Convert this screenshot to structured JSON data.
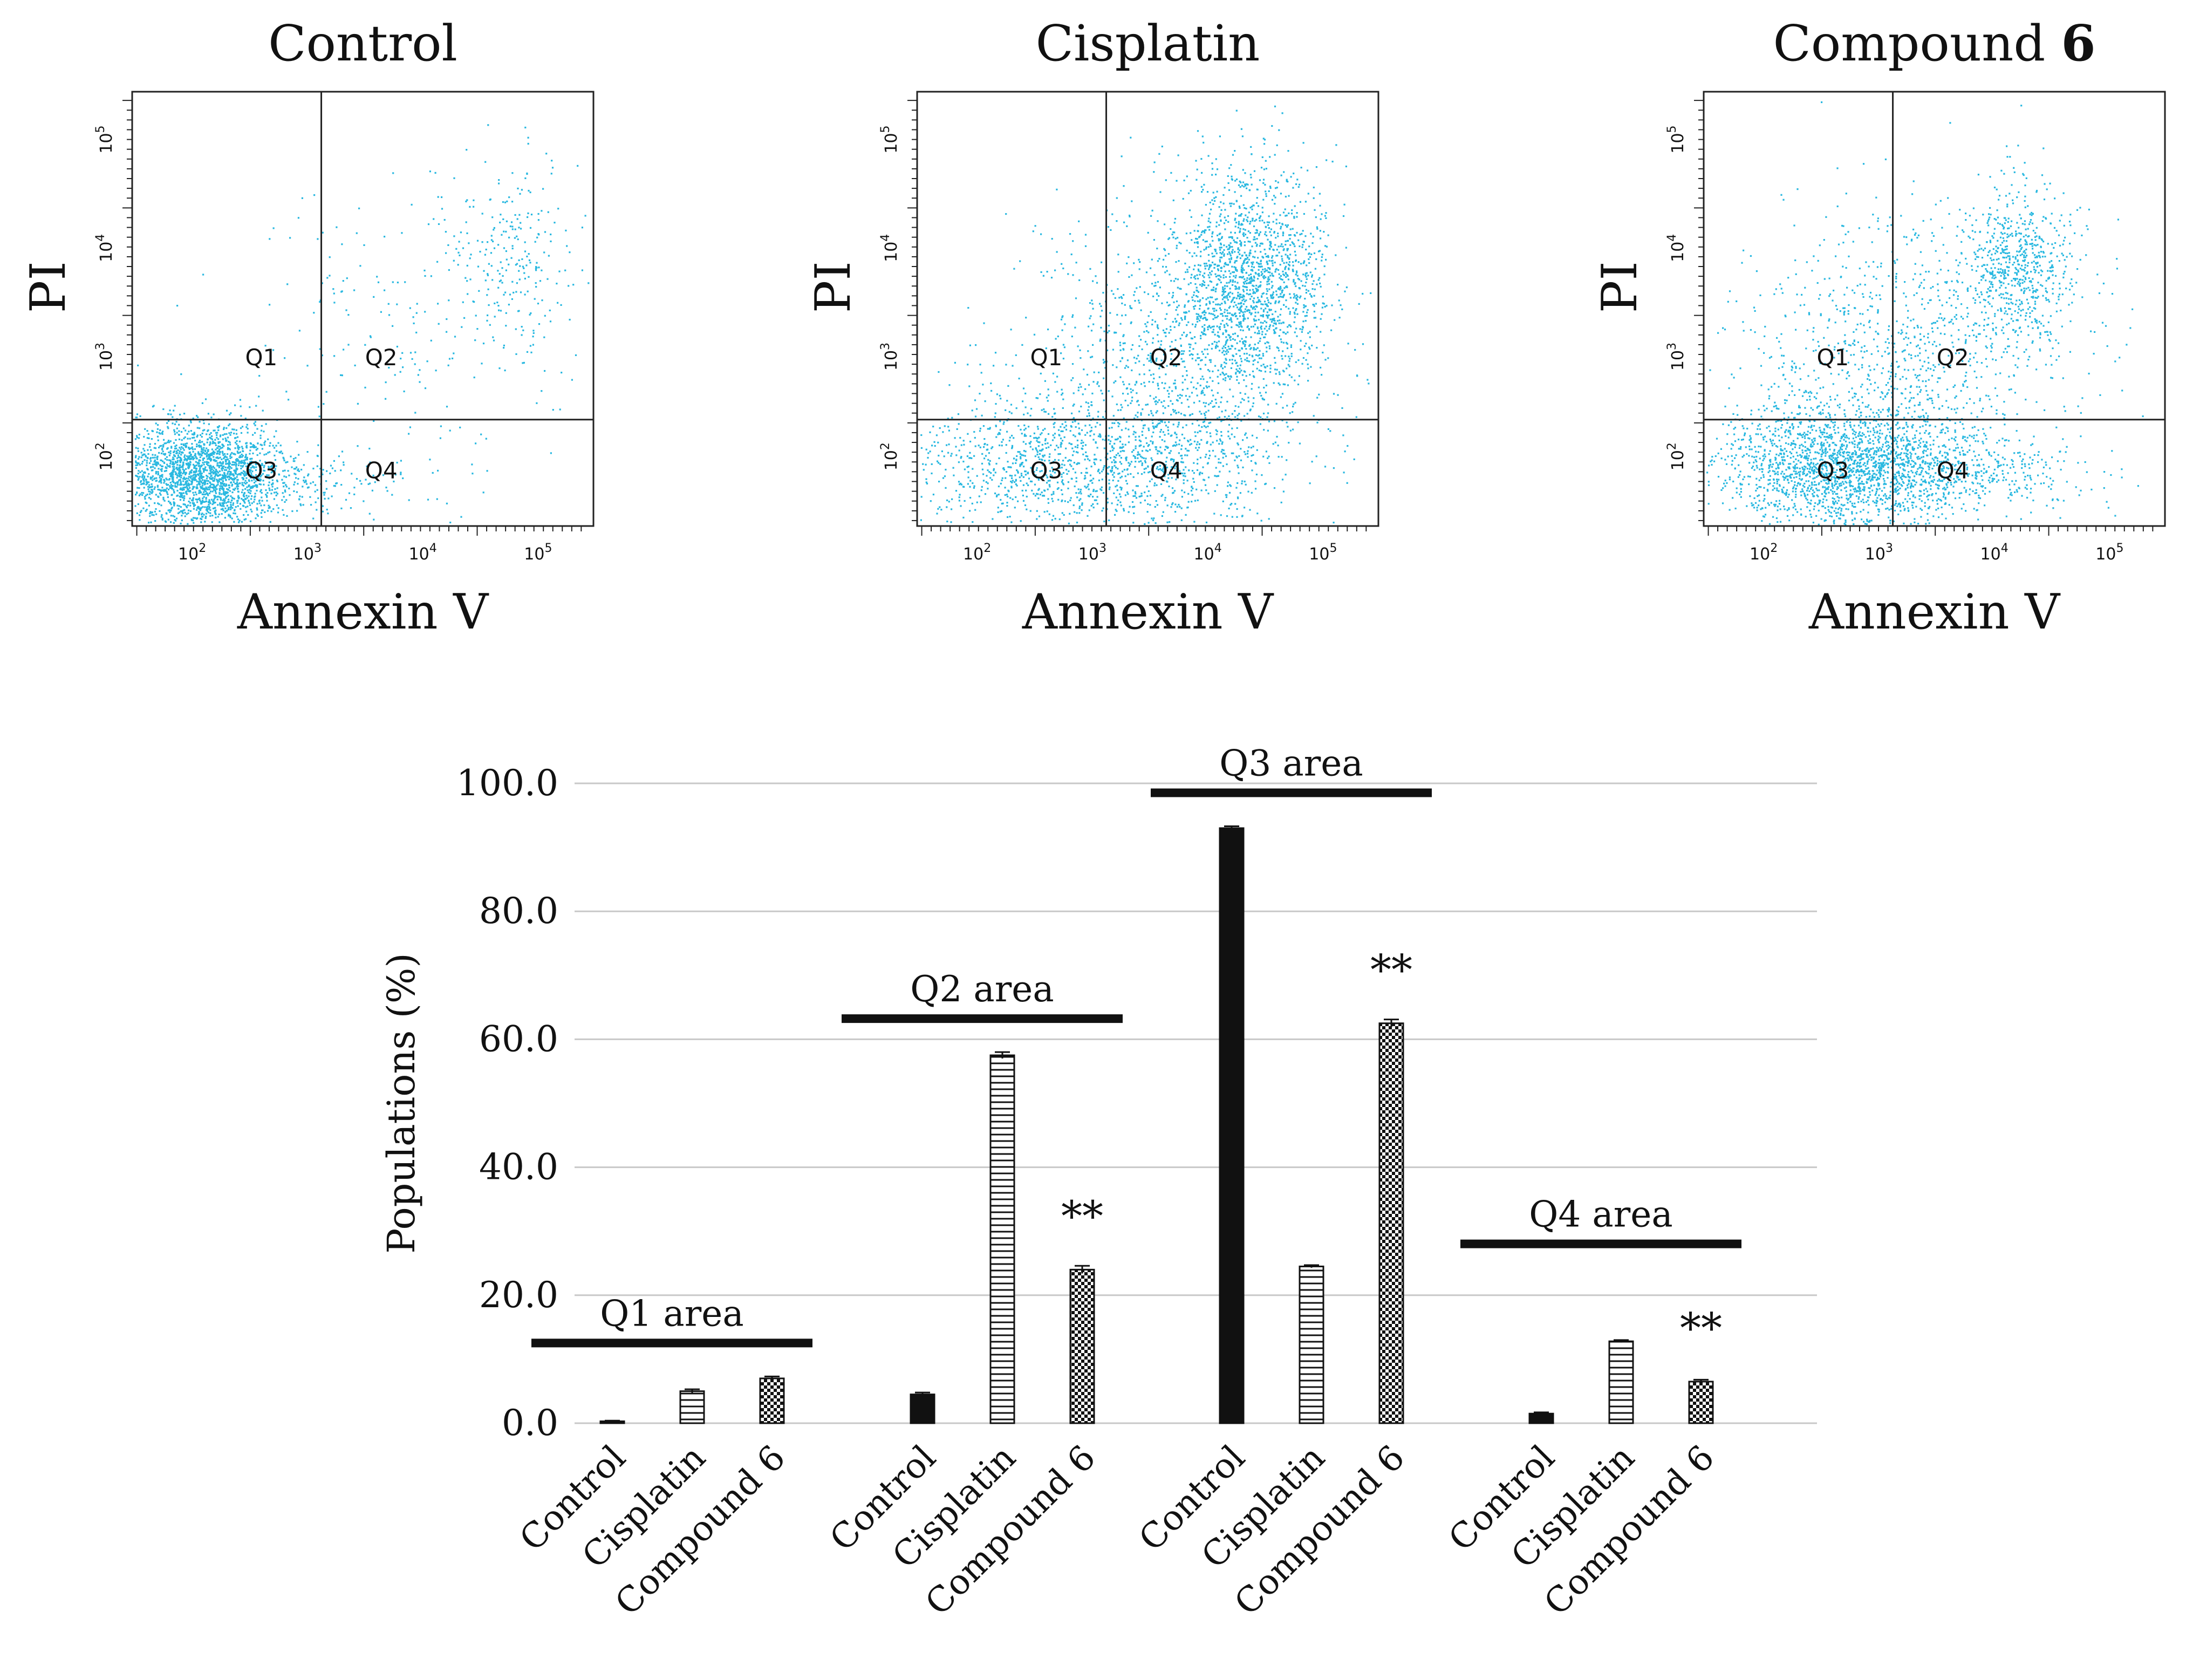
{
  "figure": {
    "flow_panels": [
      {
        "title": "Control",
        "x_label": "Annexin V",
        "y_label": "PI",
        "quadrants": [
          "Q1",
          "Q2",
          "Q3",
          "Q4"
        ],
        "x_ticks": [
          "10^2",
          "10^3",
          "10^4",
          "10^5"
        ],
        "y_ticks": [
          "10^2",
          "10^3",
          "10^4",
          "10^5"
        ]
      },
      {
        "title": "Cisplatin",
        "x_label": "Annexin V",
        "y_label": "PI",
        "quadrants": [
          "Q1",
          "Q2",
          "Q3",
          "Q4"
        ],
        "x_ticks": [
          "10^2",
          "10^3",
          "10^4",
          "10^5"
        ],
        "y_ticks": [
          "10^2",
          "10^3",
          "10^4",
          "10^5"
        ]
      },
      {
        "title": "Compound ",
        "title_bold": "6",
        "x_label": "Annexin V",
        "y_label": "PI",
        "quadrants": [
          "Q1",
          "Q2",
          "Q3",
          "Q4"
        ],
        "x_ticks": [
          "10^2",
          "10^3",
          "10^4",
          "10^5"
        ],
        "y_ticks": [
          "10^2",
          "10^3",
          "10^4",
          "10^5"
        ]
      }
    ],
    "dot_color": "#29b8e0"
  },
  "chart_data": {
    "type": "bar",
    "ylabel": "Populations (%)",
    "ylim": [
      0,
      100
    ],
    "yticks": [
      "0.0",
      "20.0",
      "40.0",
      "60.0",
      "80.0",
      "100.0"
    ],
    "grid": true,
    "groups": [
      {
        "label": "Q1 area",
        "categories": [
          "Control",
          "Cisplatin",
          "Compound 6"
        ],
        "values": [
          0.3,
          5.0,
          7.0
        ],
        "errors": [
          0.1,
          0.3,
          0.3
        ],
        "significance": [
          "",
          "",
          ""
        ]
      },
      {
        "label": "Q2 area",
        "categories": [
          "Control",
          "Cisplatin",
          "Compound 6"
        ],
        "values": [
          4.5,
          57.5,
          24.0
        ],
        "errors": [
          0.3,
          0.5,
          0.6
        ],
        "significance": [
          "",
          "",
          "**"
        ]
      },
      {
        "label": "Q3 area",
        "categories": [
          "Control",
          "Cisplatin",
          "Compound 6"
        ],
        "values": [
          93.0,
          24.5,
          62.5
        ],
        "errors": [
          0.3,
          0.2,
          0.6
        ],
        "significance": [
          "",
          "",
          "**"
        ]
      },
      {
        "label": "Q4 area",
        "categories": [
          "Control",
          "Cisplatin",
          "Compound 6"
        ],
        "values": [
          1.5,
          12.8,
          6.5
        ],
        "errors": [
          0.2,
          0.2,
          0.3
        ],
        "significance": [
          "",
          "",
          "**"
        ]
      }
    ],
    "bar_patterns": [
      "solid-black",
      "horizontal-lines",
      "checkerboard"
    ]
  }
}
